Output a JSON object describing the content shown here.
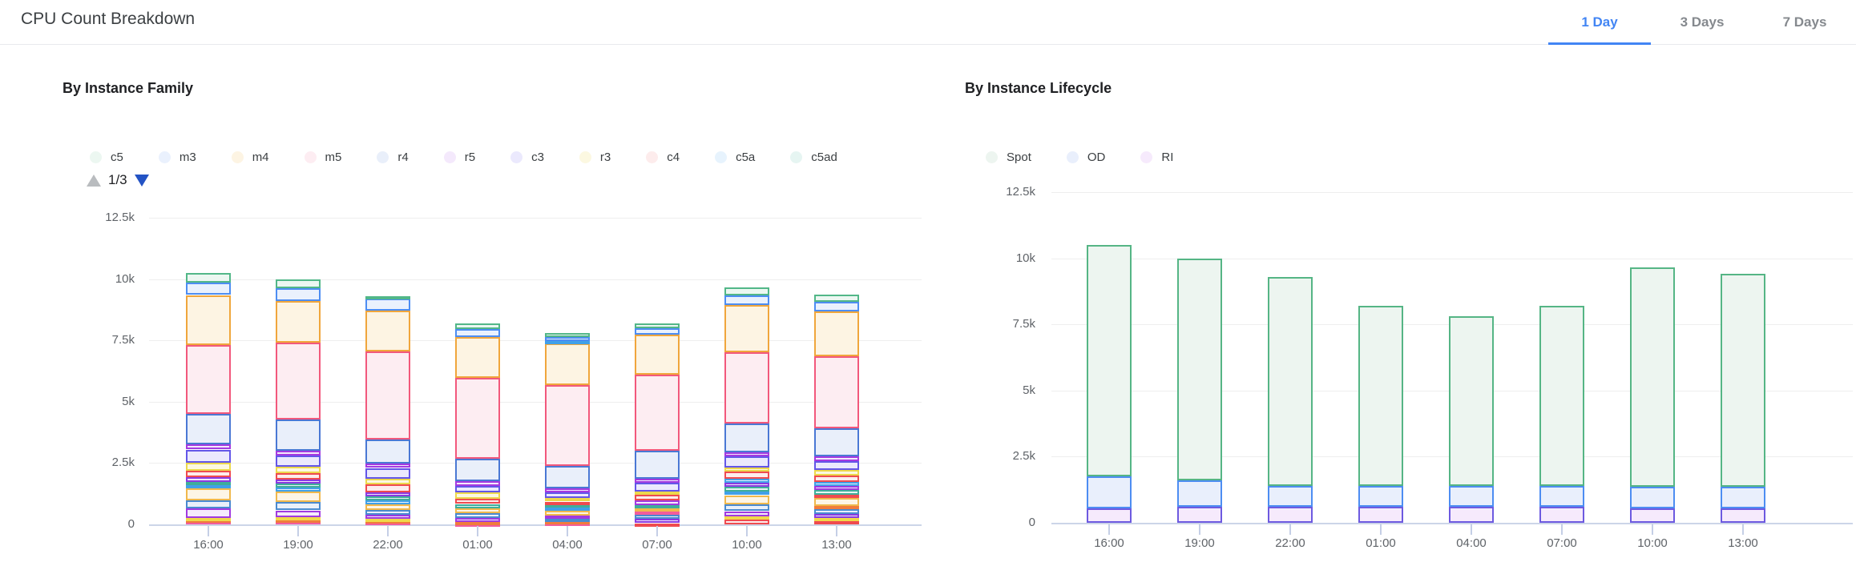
{
  "header": {
    "title": "CPU Count Breakdown",
    "tabs": [
      {
        "label": "1 Day",
        "active": true
      },
      {
        "label": "3 Days",
        "active": false
      },
      {
        "label": "7 Days",
        "active": false
      }
    ]
  },
  "accent_color": "#4285f4",
  "palette": {
    "green": {
      "stroke": "#52b788",
      "fill": "#ecf7f1"
    },
    "blue": {
      "stroke": "#4d8df2",
      "fill": "#eaf1fd"
    },
    "amber": {
      "stroke": "#f0a63c",
      "fill": "#fdf4e3"
    },
    "rose": {
      "stroke": "#f2587c",
      "fill": "#fdedf2"
    },
    "steel": {
      "stroke": "#4a78d4",
      "fill": "#e9effa"
    },
    "magenta": {
      "stroke": "#a43ae0",
      "fill": "#f4e9fc"
    },
    "indigo": {
      "stroke": "#6356e8",
      "fill": "#ebe9fd"
    },
    "yellow": {
      "stroke": "#ecd84c",
      "fill": "#fcf8e1"
    },
    "red": {
      "stroke": "#ef4b4f",
      "fill": "#fdecec"
    },
    "sky": {
      "stroke": "#41a0e8",
      "fill": "#e7f3fd"
    },
    "teal": {
      "stroke": "#3fae9a",
      "fill": "#e6f5f2"
    },
    "violet": {
      "stroke": "#8a3ae0",
      "fill": "#f2e7fc"
    },
    "amber2": {
      "stroke": "#f0b84c",
      "fill": "#fdf5e6"
    },
    "blue2": {
      "stroke": "#4a8ad0",
      "fill": "#e9f0fa"
    },
    "purple2": {
      "stroke": "#a03ae0",
      "fill": "#f5ebfc"
    },
    "yellow2": {
      "stroke": "#f0d84a",
      "fill": "#fcf8e2"
    },
    "orange2": {
      "stroke": "#f07c3c",
      "fill": "#fdefe6"
    },
    "rose2": {
      "stroke": "#f25c9c",
      "fill": "#fdedf5"
    },
    "spot": {
      "stroke": "#55b585",
      "fill": "#edf5f0"
    },
    "od": {
      "stroke": "#4d8df2",
      "fill": "#e9effc"
    },
    "ri": {
      "stroke": "#6d5ae0",
      "fill": "#f6eafc"
    }
  },
  "chart_data": [
    {
      "type": "bar",
      "stacked": true,
      "title": "By Instance Family",
      "categories": [
        "16:00",
        "19:00",
        "22:00",
        "01:00",
        "04:00",
        "07:00",
        "10:00",
        "13:00"
      ],
      "ylim": [
        0,
        12500
      ],
      "yticks": [
        0,
        2500,
        5000,
        7500,
        10000,
        12500
      ],
      "ytick_labels": [
        "0",
        "2.5k",
        "5k",
        "7.5k",
        "10k",
        "12.5k"
      ],
      "grid": true,
      "legend_position": "top",
      "legend": [
        {
          "name": "c5",
          "color": "green"
        },
        {
          "name": "m3",
          "color": "blue"
        },
        {
          "name": "m4",
          "color": "amber"
        },
        {
          "name": "m5",
          "color": "rose"
        },
        {
          "name": "r4",
          "color": "steel"
        },
        {
          "name": "r5",
          "color": "magenta"
        },
        {
          "name": "c3",
          "color": "indigo"
        },
        {
          "name": "r3",
          "color": "yellow"
        },
        {
          "name": "c4",
          "color": "red"
        },
        {
          "name": "c5a",
          "color": "sky"
        },
        {
          "name": "c5ad",
          "color": "teal"
        }
      ],
      "legend_pagination": {
        "page": "1/3"
      },
      "bar_totals": [
        10250,
        10000,
        9300,
        8200,
        7800,
        8200,
        9660,
        9380
      ],
      "bars": [
        {
          "category": "16:00",
          "segments_bottom_to_top": [
            [
              "rose2",
              120
            ],
            [
              "orange2",
              70
            ],
            [
              "yellow2",
              80
            ],
            [
              "purple2",
              380
            ],
            [
              "blue2",
              330
            ],
            [
              "amber2",
              500
            ],
            [
              "sky",
              130
            ],
            [
              "teal",
              120
            ],
            [
              "violet",
              200
            ],
            [
              "red",
              270
            ],
            [
              "yellow",
              300
            ],
            [
              "indigo",
              550
            ],
            [
              "magenta",
              200
            ],
            [
              "steel",
              1250
            ],
            [
              "rose",
              2800
            ],
            [
              "amber",
              2050
            ],
            [
              "blue",
              500
            ],
            [
              "green",
              400
            ]
          ]
        },
        {
          "category": "19:00",
          "segments_bottom_to_top": [
            [
              "rose2",
              140
            ],
            [
              "orange2",
              70
            ],
            [
              "yellow2",
              80
            ],
            [
              "purple2",
              280
            ],
            [
              "blue2",
              330
            ],
            [
              "amber2",
              430
            ],
            [
              "sky",
              160
            ],
            [
              "teal",
              160
            ],
            [
              "violet",
              190
            ],
            [
              "red",
              240
            ],
            [
              "yellow",
              280
            ],
            [
              "indigo",
              460
            ],
            [
              "magenta",
              190
            ],
            [
              "steel",
              1270
            ],
            [
              "rose",
              3120
            ],
            [
              "amber",
              1700
            ],
            [
              "blue",
              530
            ],
            [
              "green",
              370
            ]
          ]
        },
        {
          "category": "22:00",
          "segments_bottom_to_top": [
            [
              "rose2",
              100
            ],
            [
              "orange2",
              50
            ],
            [
              "yellow2",
              70
            ],
            [
              "purple2",
              160
            ],
            [
              "blue2",
              210
            ],
            [
              "amber2",
              240
            ],
            [
              "sky",
              140
            ],
            [
              "teal",
              170
            ],
            [
              "violet",
              160
            ],
            [
              "red",
              330
            ],
            [
              "yellow",
              240
            ],
            [
              "indigo",
              430
            ],
            [
              "magenta",
              170
            ],
            [
              "steel",
              1000
            ],
            [
              "rose",
              3570
            ],
            [
              "amber",
              1680
            ],
            [
              "blue",
              490
            ],
            [
              "green",
              90
            ]
          ]
        },
        {
          "category": "01:00",
          "segments_bottom_to_top": [
            [
              "rose2",
              50
            ],
            [
              "orange2",
              60
            ],
            [
              "purple2",
              160
            ],
            [
              "blue2",
              180
            ],
            [
              "amber2",
              200
            ],
            [
              "teal",
              180
            ],
            [
              "red",
              200
            ],
            [
              "yellow",
              270
            ],
            [
              "indigo",
              270
            ],
            [
              "magenta",
              180
            ],
            [
              "steel",
              920
            ],
            [
              "rose",
              3300
            ],
            [
              "amber",
              1660
            ],
            [
              "blue",
              320
            ],
            [
              "green",
              250
            ]
          ]
        },
        {
          "category": "04:00",
          "segments_bottom_to_top": [
            [
              "rose2",
              60
            ],
            [
              "orange2",
              60
            ],
            [
              "blue2",
              100
            ],
            [
              "purple2",
              150
            ],
            [
              "amber2",
              200
            ],
            [
              "sky",
              120
            ],
            [
              "teal",
              120
            ],
            [
              "red",
              120
            ],
            [
              "yellow",
              160
            ],
            [
              "indigo",
              220
            ],
            [
              "magenta",
              160
            ],
            [
              "steel",
              920
            ],
            [
              "rose",
              3300
            ],
            [
              "amber",
              1680
            ],
            [
              "sky",
              100
            ],
            [
              "blue",
              160
            ],
            [
              "green",
              170
            ]
          ]
        },
        {
          "category": "07:00",
          "segments_bottom_to_top": [
            [
              "red",
              50
            ],
            [
              "violet",
              170
            ],
            [
              "blue2",
              160
            ],
            [
              "rose2",
              130
            ],
            [
              "amber2",
              140
            ],
            [
              "teal",
              140
            ],
            [
              "purple2",
              180
            ],
            [
              "red",
              250
            ],
            [
              "yellow",
              130
            ],
            [
              "indigo",
              350
            ],
            [
              "magenta",
              170
            ],
            [
              "steel",
              1130
            ],
            [
              "rose",
              3110
            ],
            [
              "amber",
              1630
            ],
            [
              "blue",
              260
            ],
            [
              "green",
              200
            ]
          ]
        },
        {
          "category": "10:00",
          "segments_bottom_to_top": [
            [
              "red",
              190
            ],
            [
              "yellow2",
              130
            ],
            [
              "purple2",
              220
            ],
            [
              "blue2",
              290
            ],
            [
              "amber2",
              360
            ],
            [
              "sky",
              140
            ],
            [
              "teal",
              190
            ],
            [
              "violet",
              180
            ],
            [
              "sky",
              170
            ],
            [
              "red",
              290
            ],
            [
              "yellow",
              170
            ],
            [
              "indigo",
              430
            ],
            [
              "magenta",
              190
            ],
            [
              "steel",
              1160
            ],
            [
              "rose",
              2900
            ],
            [
              "amber",
              1940
            ],
            [
              "blue",
              380
            ],
            [
              "green",
              330
            ]
          ]
        },
        {
          "category": "13:00",
          "segments_bottom_to_top": [
            [
              "red",
              130
            ],
            [
              "yellow2",
              120
            ],
            [
              "violet",
              180
            ],
            [
              "blue2",
              190
            ],
            [
              "orange2",
              140
            ],
            [
              "amber2",
              320
            ],
            [
              "red",
              140
            ],
            [
              "teal",
              190
            ],
            [
              "purple2",
              160
            ],
            [
              "sky",
              160
            ],
            [
              "red",
              250
            ],
            [
              "yellow",
              240
            ],
            [
              "indigo",
              350
            ],
            [
              "magenta",
              190
            ],
            [
              "steel",
              1160
            ],
            [
              "rose",
              2950
            ],
            [
              "amber",
              1810
            ],
            [
              "blue",
              380
            ],
            [
              "green",
              320
            ]
          ]
        }
      ]
    },
    {
      "type": "bar",
      "stacked": true,
      "title": "By Instance Lifecycle",
      "categories": [
        "16:00",
        "19:00",
        "22:00",
        "01:00",
        "04:00",
        "07:00",
        "10:00",
        "13:00"
      ],
      "ylim": [
        0,
        12500
      ],
      "yticks": [
        0,
        2500,
        5000,
        7500,
        10000,
        12500
      ],
      "ytick_labels": [
        "0",
        "2.5k",
        "5k",
        "7.5k",
        "10k",
        "12.5k"
      ],
      "grid": true,
      "legend_position": "top",
      "legend": [
        {
          "name": "Spot",
          "color": "spot"
        },
        {
          "name": "OD",
          "color": "od"
        },
        {
          "name": "RI",
          "color": "ri"
        }
      ],
      "stack_order": "bottom_to_top",
      "series": [
        {
          "name": "RI",
          "color": "ri",
          "values": [
            550,
            600,
            600,
            600,
            600,
            600,
            550,
            550
          ]
        },
        {
          "name": "OD",
          "color": "od",
          "values": [
            1200,
            1000,
            800,
            800,
            800,
            800,
            800,
            800
          ]
        },
        {
          "name": "Spot",
          "color": "spot",
          "values": [
            8750,
            8400,
            7900,
            6800,
            6400,
            6800,
            8300,
            8050
          ]
        }
      ],
      "bar_totals": [
        10500,
        10000,
        9300,
        8200,
        7800,
        8200,
        9650,
        9400
      ]
    }
  ]
}
